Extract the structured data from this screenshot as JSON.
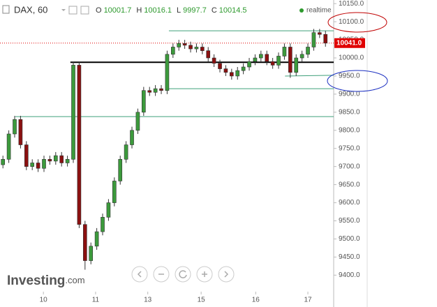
{
  "chart_data": {
    "type": "candlestick",
    "header": {
      "symbol": "DAX, 60",
      "ohlc": [
        {
          "key": "O",
          "value": "10001.7"
        },
        {
          "key": "H",
          "value": "10016.1"
        },
        {
          "key": "L",
          "value": "9997.7"
        },
        {
          "key": "C",
          "value": "10014.5"
        }
      ],
      "status": "realtime"
    },
    "logo": {
      "name": "Investing",
      "suffix": ".com"
    },
    "up_color": "#3c9a3c",
    "down_color": "#8b1010",
    "open": [
      9705,
      9720,
      9790,
      9830,
      9760,
      9700,
      9710,
      9695,
      9720,
      9715,
      9730,
      9710,
      9720,
      9980,
      9540,
      9440,
      9480,
      9520,
      9560,
      9600,
      9660,
      9720,
      9760,
      9800,
      9850,
      9910,
      9905,
      9915,
      9910,
      10010,
      10030,
      10040,
      10035,
      10025,
      10030,
      10020,
      10000,
      9985,
      9970,
      9960,
      9950,
      9965,
      9975,
      9990,
      10000,
      10010,
      9990,
      9980,
      10005,
      10030,
      9960,
      10000,
      10010,
      10030,
      10070,
      10065
    ],
    "high": [
      9730,
      9800,
      9840,
      9840,
      9770,
      9720,
      9720,
      9730,
      9730,
      9740,
      9740,
      9730,
      9990,
      9990,
      9550,
      9490,
      9530,
      9570,
      9610,
      9670,
      9730,
      9770,
      9810,
      9860,
      9920,
      9920,
      9925,
      9925,
      10020,
      10040,
      10050,
      10050,
      10045,
      10040,
      10040,
      10030,
      10010,
      9995,
      9980,
      9970,
      9975,
      9985,
      10000,
      10010,
      10020,
      10020,
      10000,
      10015,
      10040,
      10040,
      10010,
      10020,
      10040,
      10080,
      10080,
      10075
    ],
    "low": [
      9695,
      9710,
      9780,
      9750,
      9690,
      9690,
      9685,
      9685,
      9705,
      9705,
      9700,
      9700,
      9710,
      9530,
      9415,
      9430,
      9470,
      9510,
      9550,
      9590,
      9650,
      9710,
      9750,
      9790,
      9840,
      9895,
      9895,
      9900,
      9900,
      10000,
      10020,
      10025,
      10015,
      10015,
      10010,
      9990,
      9975,
      9960,
      9950,
      9940,
      9940,
      9955,
      9965,
      9980,
      9990,
      9980,
      9970,
      9970,
      9995,
      9945,
      9950,
      9990,
      10000,
      10020,
      10055,
      10031
    ],
    "close": [
      9720,
      9790,
      9830,
      9760,
      9700,
      9710,
      9695,
      9720,
      9715,
      9730,
      9710,
      9720,
      9980,
      9540,
      9440,
      9480,
      9520,
      9560,
      9600,
      9660,
      9720,
      9760,
      9800,
      9850,
      9910,
      9905,
      9915,
      9910,
      10010,
      10030,
      10040,
      10035,
      10025,
      10030,
      10020,
      10000,
      9985,
      9970,
      9960,
      9950,
      9965,
      9975,
      9990,
      10000,
      10010,
      9990,
      9980,
      10005,
      10030,
      9960,
      10000,
      10010,
      10030,
      10070,
      10065,
      10041
    ],
    "xlim": [
      -0.5,
      56.4
    ],
    "xticks": [
      {
        "value": 6.9,
        "label": "10"
      },
      {
        "value": 15.8,
        "label": "11"
      },
      {
        "value": 24.7,
        "label": "13"
      },
      {
        "value": 33.8,
        "label": "15"
      },
      {
        "value": 43.1,
        "label": "16"
      },
      {
        "value": 52,
        "label": "17"
      }
    ],
    "ylim": [
      9312,
      10160
    ],
    "yticks": [
      {
        "value": 9400,
        "label": "9400.0"
      },
      {
        "value": 9450,
        "label": "9450.0"
      },
      {
        "value": 9500,
        "label": "9500.0"
      },
      {
        "value": 9550,
        "label": "9550.0"
      },
      {
        "value": 9600,
        "label": "9600.0"
      },
      {
        "value": 9650,
        "label": "9650.0"
      },
      {
        "value": 9700,
        "label": "9700.0"
      },
      {
        "value": 9750,
        "label": "9750.0"
      },
      {
        "value": 9800,
        "label": "9800.0"
      },
      {
        "value": 9850,
        "label": "9850.0"
      },
      {
        "value": 9900,
        "label": "9900.0"
      },
      {
        "value": 9950,
        "label": "9950.0"
      },
      {
        "value": 10000,
        "label": "10000.0"
      },
      {
        "value": 10050,
        "label": "10050.0"
      },
      {
        "value": 10100,
        "label": "10100.0"
      },
      {
        "value": 10150,
        "label": "10150.0"
      }
    ],
    "last_price": {
      "value": 10041,
      "label": "10041.0"
    },
    "last_price_color": "#e00000",
    "lines": [
      {
        "x": [
          11.5,
          56.4
        ],
        "y": [
          9988,
          9988
        ],
        "color": "#000000",
        "width": 2
      },
      {
        "x": [
          28.3,
          56.4
        ],
        "y": [
          10075,
          10075
        ],
        "color": "#3fa07a",
        "width": 1
      },
      {
        "x": [
          28.1,
          56.4
        ],
        "y": [
          9915,
          9915
        ],
        "color": "#3fa07a",
        "width": 1
      },
      {
        "x": [
          2.1,
          56.4
        ],
        "y": [
          9838,
          9838
        ],
        "color": "#3fa07a",
        "width": 1
      },
      {
        "x": [
          48.1,
          56.4
        ],
        "y": [
          9950,
          9952
        ],
        "color": "#3fa07a",
        "width": 1
      }
    ]
  }
}
